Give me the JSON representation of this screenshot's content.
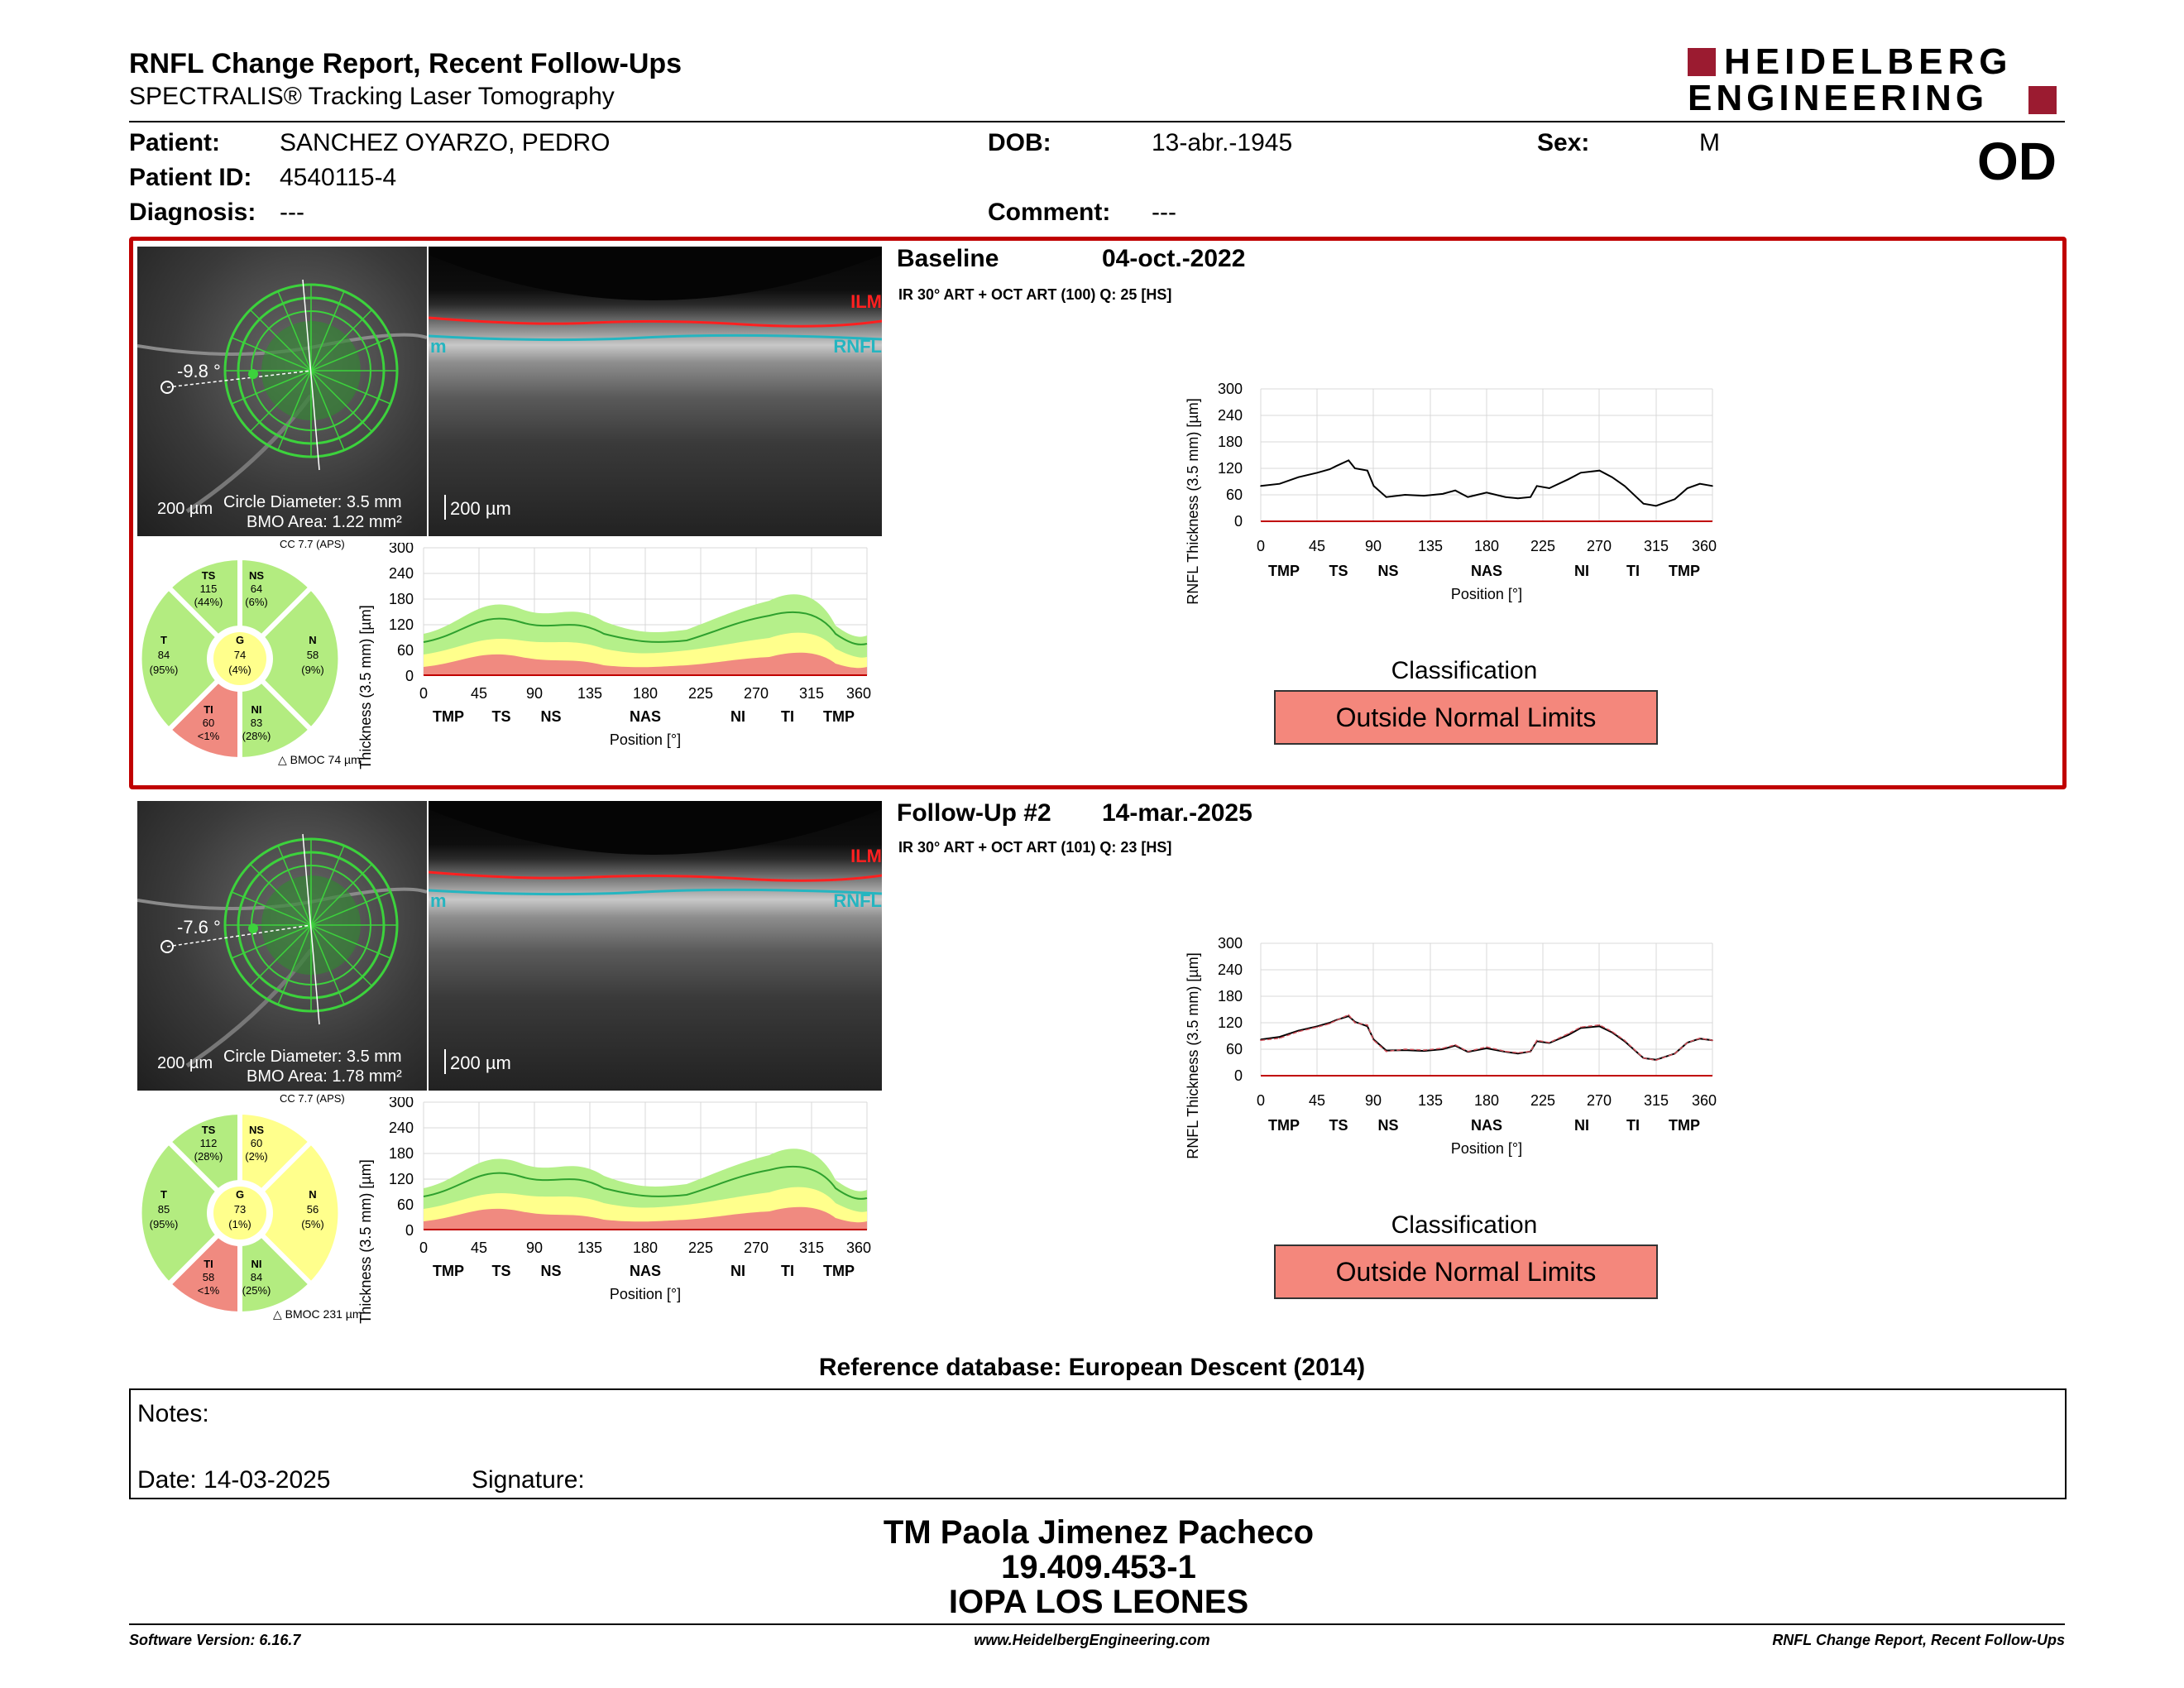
{
  "report": {
    "title": "RNFL Change Report, Recent Follow-Ups",
    "subtitle": "SPECTRALIS® Tracking Laser Tomography",
    "brand_line1": "HEIDELBERG",
    "brand_line2": "ENGINEERING",
    "eye": "OD",
    "brand_color": "#9b1b30"
  },
  "patient": {
    "patient_label": "Patient:",
    "patient_value": "SANCHEZ OYARZO, PEDRO",
    "id_label": "Patient ID:",
    "id_value": "4540115-4",
    "diagnosis_label": "Diagnosis:",
    "diagnosis_value": "---",
    "dob_label": "DOB:",
    "dob_value": "13-abr.-1945",
    "comment_label": "Comment:",
    "comment_value": "---",
    "sex_label": "Sex:",
    "sex_value": "M"
  },
  "exams": [
    {
      "name": "Baseline",
      "date": "04-oct.-2022",
      "acq": "IR 30° ART + OCT ART (100) Q: 25 [HS]",
      "angle": "-9.8 °",
      "scale_fundus": "200 µm",
      "circle_diameter": "Circle Diameter: 3.5 mm",
      "bmo_area": "BMO Area: 1.22 mm²",
      "scale_bscan": "200 µm",
      "ilm": "ILM",
      "rnfl": "RNFL",
      "bm": "m",
      "cc": "CC 7.7 (APS)",
      "bmoc": "BMOC 74 µm",
      "sectors": {
        "TS": {
          "label": "TS",
          "value": "115",
          "pct": "(44%)"
        },
        "NS": {
          "label": "NS",
          "value": "64",
          "pct": "(6%)"
        },
        "T": {
          "label": "T",
          "value": "84",
          "pct": "(95%)"
        },
        "G": {
          "label": "G",
          "value": "74",
          "pct": "(4%)"
        },
        "N": {
          "label": "N",
          "value": "58",
          "pct": "(9%)"
        },
        "TI": {
          "label": "TI",
          "value": "60",
          "pct": "<1%"
        },
        "NI": {
          "label": "NI",
          "value": "83",
          "pct": "(28%)"
        }
      },
      "classification_title": "Classification",
      "classification": "Outside Normal Limits"
    },
    {
      "name": "Follow-Up #2",
      "date": "14-mar.-2025",
      "acq": "IR 30° ART + OCT ART (101) Q: 23 [HS]",
      "angle": "-7.6 °",
      "scale_fundus": "200 µm",
      "circle_diameter": "Circle Diameter: 3.5 mm",
      "bmo_area": "BMO Area: 1.78 mm²",
      "scale_bscan": "200 µm",
      "ilm": "ILM",
      "rnfl": "RNFL",
      "bm": "m",
      "cc": "CC 7.7 (APS)",
      "bmoc": "BMOC 231 µm",
      "sectors": {
        "TS": {
          "label": "TS",
          "value": "112",
          "pct": "(28%)"
        },
        "NS": {
          "label": "NS",
          "value": "60",
          "pct": "(2%)"
        },
        "T": {
          "label": "T",
          "value": "85",
          "pct": "(95%)"
        },
        "G": {
          "label": "G",
          "value": "73",
          "pct": "(1%)"
        },
        "N": {
          "label": "N",
          "value": "56",
          "pct": "(5%)"
        },
        "TI": {
          "label": "TI",
          "value": "58",
          "pct": "<1%"
        },
        "NI": {
          "label": "NI",
          "value": "84",
          "pct": "(25%)"
        }
      },
      "classification_title": "Classification",
      "classification": "Outside Normal Limits"
    }
  ],
  "chart_axes": {
    "ylabel": "RNFL Thickness (3.5 mm) [µm]",
    "xlabel": "Position [°]",
    "yticks": [
      "300",
      "240",
      "180",
      "120",
      "60",
      "0"
    ],
    "xticks": [
      "0",
      "45",
      "90",
      "135",
      "180",
      "225",
      "270",
      "315",
      "360"
    ],
    "sectors": [
      "TMP",
      "TS",
      "NS",
      "NAS",
      "NI",
      "TI",
      "TMP"
    ]
  },
  "chart_data": [
    {
      "type": "line",
      "title": "",
      "xlabel": "Position [°]",
      "ylabel": "RNFL Thickness (3.5 mm) [µm]",
      "xlim": [
        0,
        360
      ],
      "ylim": [
        0,
        300
      ],
      "x": [
        0,
        15,
        30,
        45,
        55,
        60,
        70,
        75,
        85,
        90,
        100,
        115,
        130,
        145,
        155,
        165,
        180,
        195,
        205,
        215,
        220,
        230,
        245,
        255,
        270,
        280,
        290,
        305,
        315,
        330,
        340,
        350,
        360
      ],
      "series": [
        {
          "values": [
            80,
            85,
            100,
            110,
            118,
            125,
            138,
            120,
            115,
            80,
            55,
            60,
            58,
            62,
            70,
            55,
            65,
            55,
            52,
            55,
            80,
            75,
            95,
            110,
            115,
            100,
            80,
            40,
            35,
            50,
            75,
            85,
            80
          ]
        }
      ]
    },
    {
      "type": "line",
      "title": "",
      "xlabel": "Position [°]",
      "ylabel": "RNFL Thickness (3.5 mm) [µm]",
      "xlim": [
        0,
        360
      ],
      "ylim": [
        0,
        300
      ],
      "x": [
        0,
        15,
        30,
        45,
        55,
        60,
        70,
        75,
        85,
        90,
        100,
        115,
        130,
        145,
        155,
        165,
        180,
        195,
        205,
        215,
        220,
        230,
        245,
        255,
        270,
        280,
        290,
        305,
        315,
        330,
        340,
        350,
        360
      ],
      "series": [
        {
          "values": [
            82,
            88,
            102,
            112,
            120,
            126,
            135,
            122,
            112,
            82,
            57,
            58,
            56,
            60,
            68,
            54,
            62,
            54,
            50,
            55,
            78,
            74,
            92,
            108,
            112,
            98,
            78,
            40,
            36,
            50,
            75,
            84,
            80
          ]
        },
        {
          "values": [
            80,
            85,
            100,
            110,
            118,
            125,
            138,
            120,
            115,
            80,
            55,
            60,
            58,
            62,
            70,
            55,
            65,
            55,
            52,
            55,
            80,
            75,
            95,
            110,
            115,
            100,
            80,
            40,
            35,
            50,
            75,
            85,
            80
          ]
        }
      ]
    }
  ],
  "footer": {
    "reference_db": "Reference database: European Descent (2014)",
    "notes_label": "Notes:",
    "date_label": "Date: 14-03-2025",
    "signature_label": "Signature:",
    "signer_name": "TM Paola Jimenez Pacheco",
    "signer_id": "19.409.453-1",
    "signer_org": "IOPA LOS LEONES",
    "software": "Software Version: 6.16.7",
    "website": "www.HeidelbergEngineering.com",
    "footer_title": "RNFL Change Report, Recent Follow-Ups"
  }
}
